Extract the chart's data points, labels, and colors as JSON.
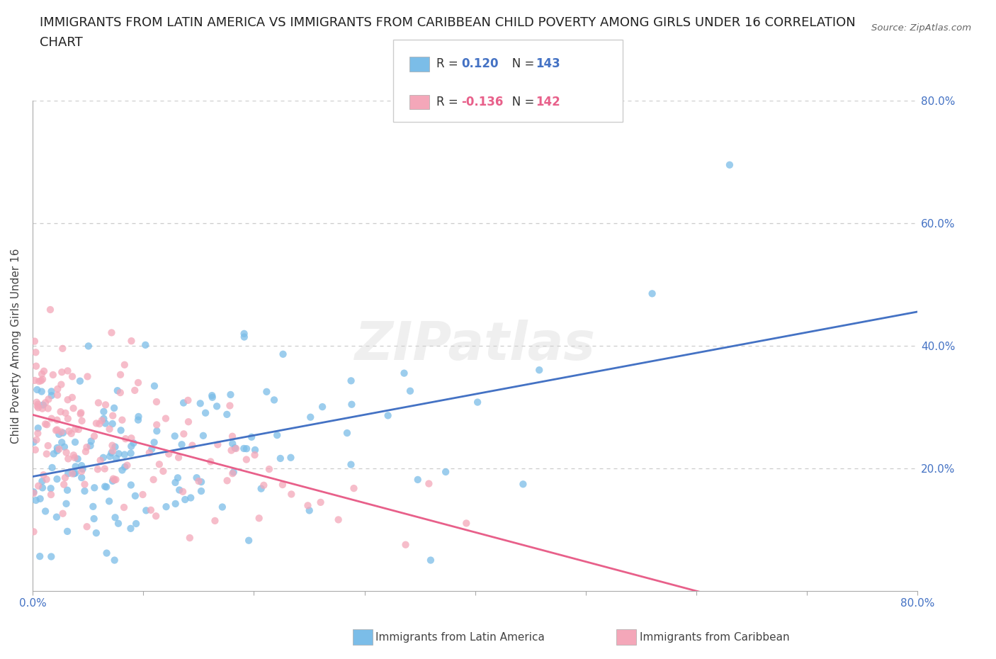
{
  "title_line1": "IMMIGRANTS FROM LATIN AMERICA VS IMMIGRANTS FROM CARIBBEAN CHILD POVERTY AMONG GIRLS UNDER 16 CORRELATION",
  "title_line2": "CHART",
  "source": "Source: ZipAtlas.com",
  "ylabel": "Child Poverty Among Girls Under 16",
  "xlim": [
    0.0,
    0.8
  ],
  "ylim": [
    0.0,
    0.8
  ],
  "color_blue": "#7bbde8",
  "color_pink": "#f4a7b9",
  "line_blue": "#4472c4",
  "line_pink": "#e8608a",
  "R_blue": 0.12,
  "N_blue": 143,
  "R_pink": -0.136,
  "N_pink": 142,
  "watermark": "ZIPatlas",
  "title_fontsize": 13,
  "axis_label_fontsize": 11,
  "tick_fontsize": 11,
  "right_tick_color": "#4472c4",
  "bottom_tick_color": "#4472c4"
}
